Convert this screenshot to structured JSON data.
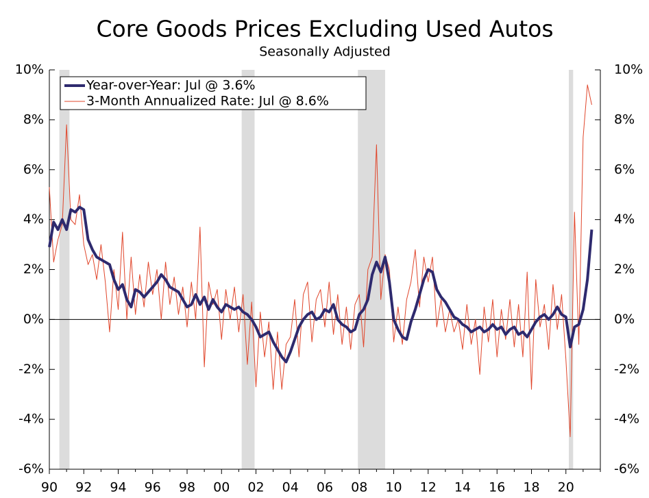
{
  "chart_data": {
    "type": "line",
    "title": "Core Goods Prices Excluding Used Autos",
    "subtitle": "Seasonally Adjusted",
    "xlim": [
      1990,
      2022
    ],
    "xticks": [
      {
        "value": 1990,
        "label": "90"
      },
      {
        "value": 1992,
        "label": "92"
      },
      {
        "value": 1994,
        "label": "94"
      },
      {
        "value": 1996,
        "label": "96"
      },
      {
        "value": 1998,
        "label": "98"
      },
      {
        "value": 2000,
        "label": "00"
      },
      {
        "value": 2002,
        "label": "02"
      },
      {
        "value": 2004,
        "label": "04"
      },
      {
        "value": 2006,
        "label": "06"
      },
      {
        "value": 2008,
        "label": "08"
      },
      {
        "value": 2010,
        "label": "10"
      },
      {
        "value": 2012,
        "label": "12"
      },
      {
        "value": 2014,
        "label": "14"
      },
      {
        "value": 2016,
        "label": "16"
      },
      {
        "value": 2018,
        "label": "18"
      },
      {
        "value": 2020,
        "label": "20"
      }
    ],
    "ylim": [
      -6,
      10
    ],
    "yticks": [
      {
        "value": -6,
        "label": "-6%"
      },
      {
        "value": -4,
        "label": "-4%"
      },
      {
        "value": -2,
        "label": "-2%"
      },
      {
        "value": 0,
        "label": "0%"
      },
      {
        "value": 2,
        "label": "2%"
      },
      {
        "value": 4,
        "label": "4%"
      },
      {
        "value": 6,
        "label": "6%"
      },
      {
        "value": 8,
        "label": "8%"
      },
      {
        "value": 10,
        "label": "10%"
      }
    ],
    "shaded_regions": [
      [
        1990.58,
        1991.17
      ],
      [
        2001.17,
        2001.92
      ],
      [
        2007.92,
        2009.5
      ],
      [
        2020.17,
        2020.42
      ]
    ],
    "legend": "top-left",
    "x": [
      1990,
      1990.25,
      1990.5,
      1990.75,
      1991,
      1991.25,
      1991.5,
      1991.75,
      1992,
      1992.25,
      1992.5,
      1992.75,
      1993,
      1993.25,
      1993.5,
      1993.75,
      1994,
      1994.25,
      1994.5,
      1994.75,
      1995,
      1995.25,
      1995.5,
      1995.75,
      1996,
      1996.25,
      1996.5,
      1996.75,
      1997,
      1997.25,
      1997.5,
      1997.75,
      1998,
      1998.25,
      1998.5,
      1998.75,
      1999,
      1999.25,
      1999.5,
      1999.75,
      2000,
      2000.25,
      2000.5,
      2000.75,
      2001,
      2001.25,
      2001.5,
      2001.75,
      2002,
      2002.25,
      2002.5,
      2002.75,
      2003,
      2003.25,
      2003.5,
      2003.75,
      2004,
      2004.25,
      2004.5,
      2004.75,
      2005,
      2005.25,
      2005.5,
      2005.75,
      2006,
      2006.25,
      2006.5,
      2006.75,
      2007,
      2007.25,
      2007.5,
      2007.75,
      2008,
      2008.25,
      2008.5,
      2008.75,
      2009,
      2009.25,
      2009.5,
      2009.75,
      2010,
      2010.25,
      2010.5,
      2010.75,
      2011,
      2011.25,
      2011.5,
      2011.75,
      2012,
      2012.25,
      2012.5,
      2012.75,
      2013,
      2013.25,
      2013.5,
      2013.75,
      2014,
      2014.25,
      2014.5,
      2014.75,
      2015,
      2015.25,
      2015.5,
      2015.75,
      2016,
      2016.25,
      2016.5,
      2016.75,
      2017,
      2017.25,
      2017.5,
      2017.75,
      2018,
      2018.25,
      2018.5,
      2018.75,
      2019,
      2019.25,
      2019.5,
      2019.75,
      2020,
      2020.25,
      2020.5,
      2020.75,
      2021,
      2021.25,
      2021.5
    ],
    "series": [
      {
        "name": "3-Month Annualized Rate: Jul @ 8.6%",
        "color": "#e0452a",
        "width": 1,
        "values": [
          5.3,
          2.3,
          3.2,
          3.8,
          7.8,
          4.0,
          3.8,
          5.0,
          3.0,
          2.2,
          2.6,
          1.6,
          3.0,
          1.5,
          -0.5,
          2.0,
          0.4,
          3.5,
          0.0,
          2.5,
          0.2,
          1.8,
          0.5,
          2.3,
          1.0,
          2.0,
          0.0,
          2.3,
          0.6,
          1.7,
          0.2,
          1.3,
          -0.3,
          1.5,
          0.0,
          3.7,
          -1.9,
          1.5,
          0.6,
          1.2,
          -0.8,
          1.2,
          0.0,
          1.3,
          -0.5,
          1.0,
          -1.8,
          0.7,
          -2.7,
          0.3,
          -1.5,
          -0.1,
          -2.8,
          -0.5,
          -2.8,
          -1.0,
          -0.7,
          0.8,
          -1.5,
          1.0,
          1.5,
          -0.9,
          0.8,
          1.2,
          -0.3,
          1.5,
          -0.6,
          1.0,
          -1.0,
          0.5,
          -1.2,
          0.6,
          1.0,
          -1.1,
          2.0,
          2.5,
          7.0,
          0.8,
          2.6,
          2.0,
          -0.9,
          0.5,
          -1.0,
          0.8,
          1.5,
          2.8,
          0.5,
          2.5,
          1.5,
          2.5,
          -0.3,
          0.8,
          -0.5,
          0.4,
          -0.5,
          0.0,
          -1.2,
          0.6,
          -1.0,
          0.0,
          -2.2,
          0.5,
          -0.9,
          0.8,
          -1.5,
          0.4,
          -0.8,
          0.8,
          -1.1,
          0.6,
          -1.5,
          1.9,
          -2.8,
          1.6,
          -0.3,
          0.6,
          -1.2,
          1.4,
          -0.4,
          1.0,
          -1.6,
          -4.7,
          4.3,
          -1.0,
          7.3,
          9.4,
          8.6
        ]
      },
      {
        "name": "Year-over-Year: Jul @ 3.6%",
        "color": "#2e2a6e",
        "width": 4,
        "values": [
          2.9,
          3.9,
          3.6,
          4.0,
          3.6,
          4.4,
          4.3,
          4.5,
          4.4,
          3.2,
          2.8,
          2.5,
          2.4,
          2.3,
          2.2,
          1.6,
          1.2,
          1.4,
          0.8,
          0.5,
          1.2,
          1.1,
          0.9,
          1.1,
          1.3,
          1.5,
          1.8,
          1.6,
          1.3,
          1.2,
          1.1,
          0.8,
          0.5,
          0.6,
          1.0,
          0.6,
          0.9,
          0.4,
          0.8,
          0.5,
          0.3,
          0.6,
          0.5,
          0.4,
          0.5,
          0.3,
          0.2,
          0.0,
          -0.3,
          -0.7,
          -0.6,
          -0.5,
          -0.9,
          -1.2,
          -1.5,
          -1.7,
          -1.3,
          -0.8,
          -0.3,
          0.0,
          0.2,
          0.3,
          0.0,
          0.1,
          0.4,
          0.3,
          0.6,
          0.0,
          -0.2,
          -0.3,
          -0.5,
          -0.4,
          0.2,
          0.4,
          0.8,
          1.8,
          2.3,
          1.9,
          2.5,
          1.5,
          0.0,
          -0.4,
          -0.7,
          -0.8,
          -0.1,
          0.4,
          1.0,
          1.6,
          2.0,
          1.9,
          1.2,
          0.9,
          0.7,
          0.4,
          0.1,
          0.0,
          -0.2,
          -0.3,
          -0.5,
          -0.4,
          -0.3,
          -0.5,
          -0.4,
          -0.2,
          -0.4,
          -0.3,
          -0.6,
          -0.4,
          -0.3,
          -0.6,
          -0.5,
          -0.7,
          -0.4,
          -0.1,
          0.1,
          0.2,
          0.0,
          0.2,
          0.5,
          0.2,
          0.1,
          -1.1,
          -0.3,
          -0.2,
          0.4,
          1.6,
          3.6
        ]
      }
    ]
  }
}
